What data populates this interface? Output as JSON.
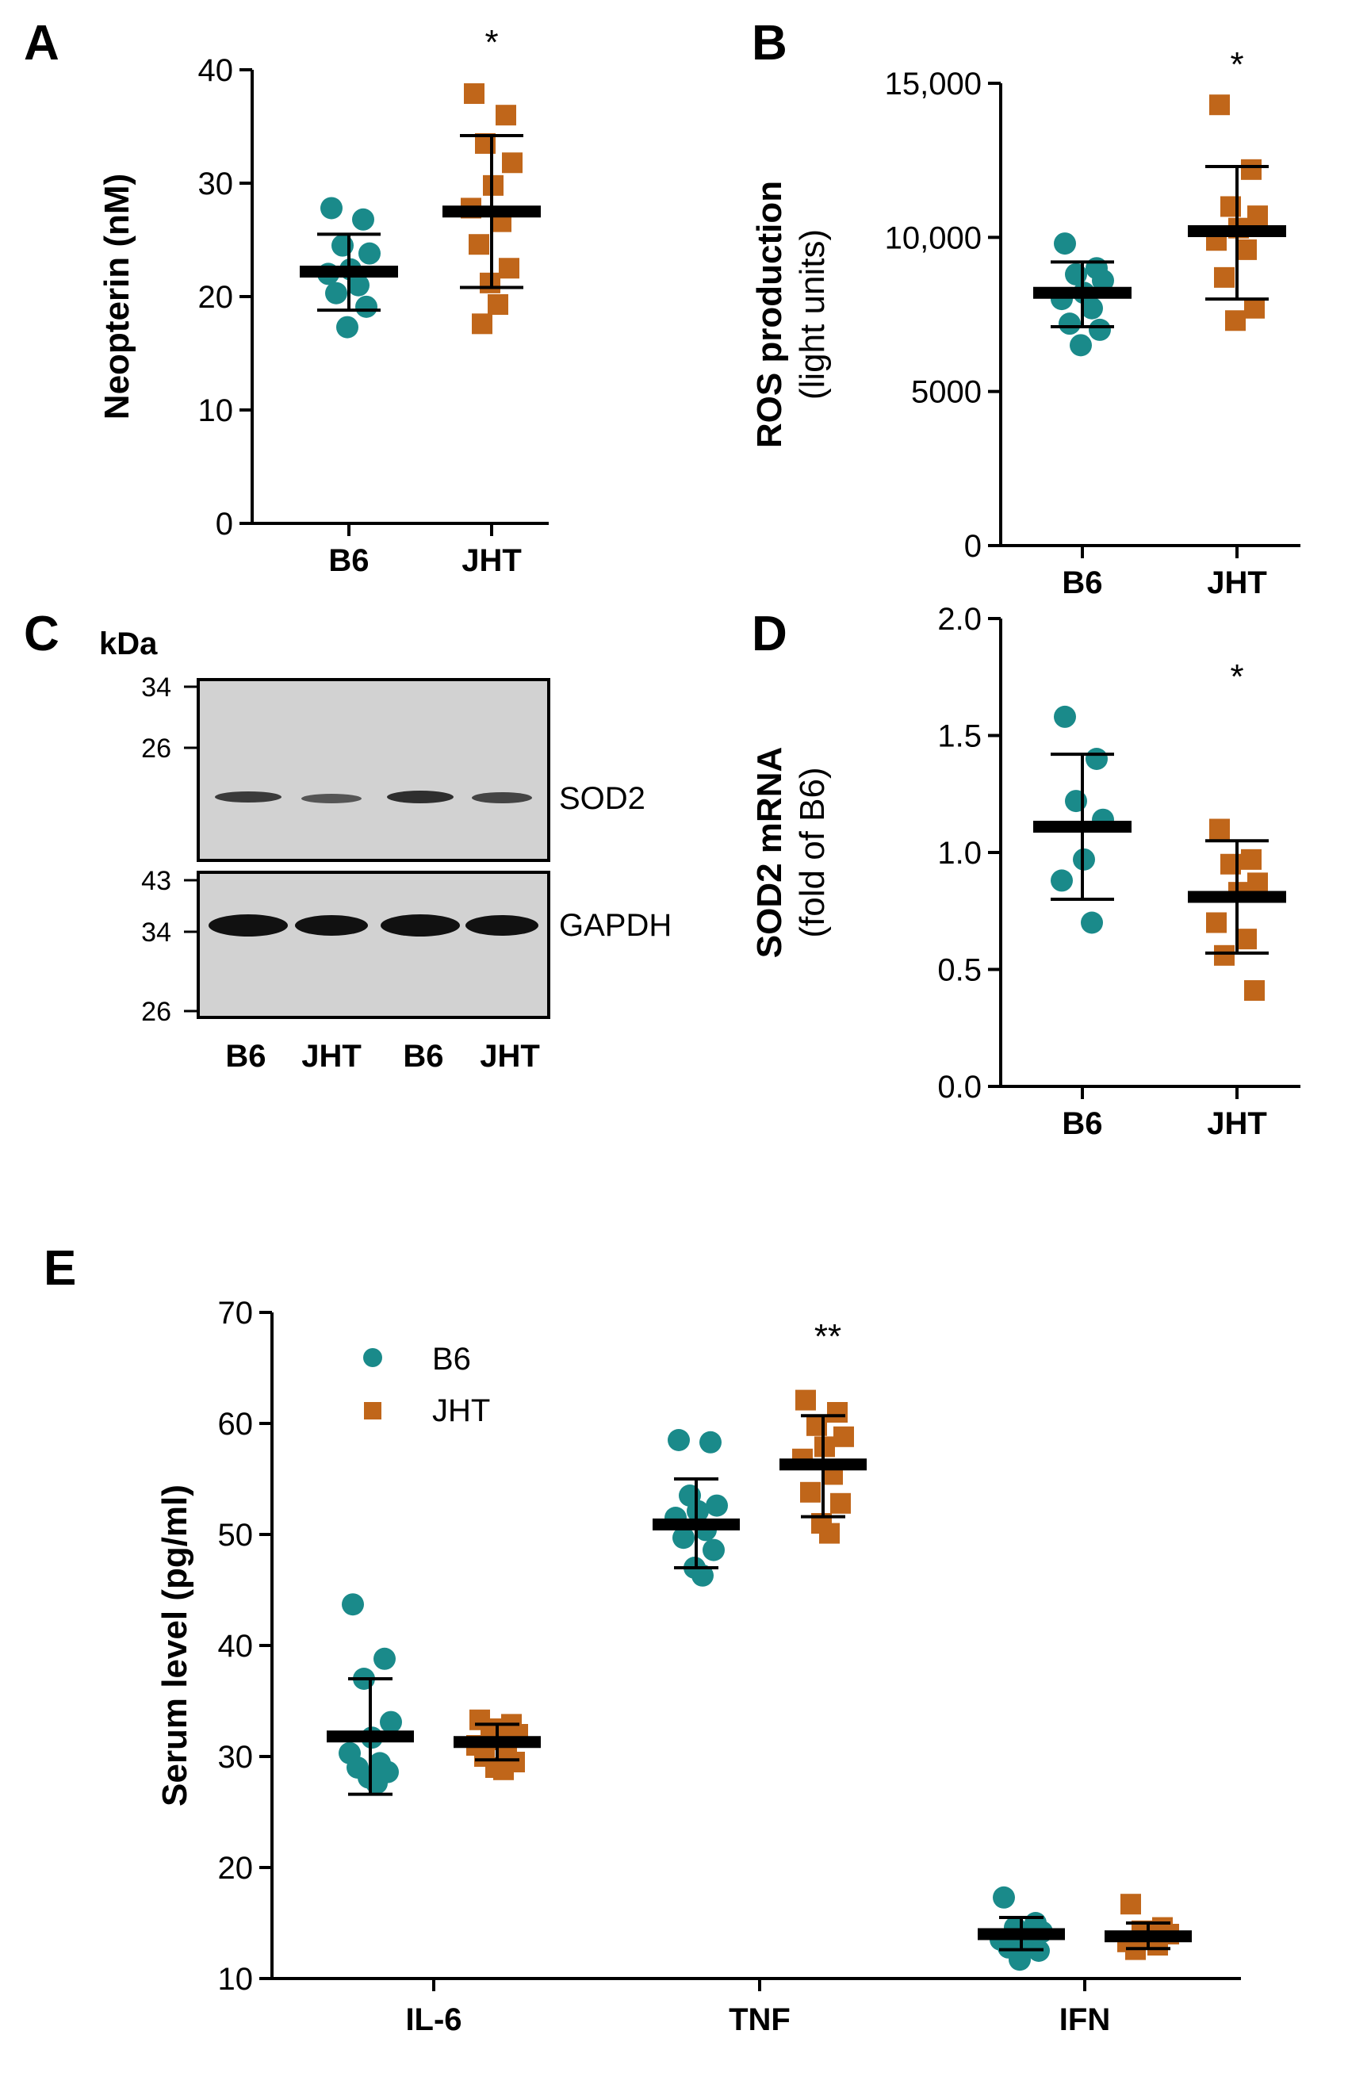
{
  "colors": {
    "b6": "#1a8a8a",
    "jht": "#c0661a",
    "ink": "#000000"
  },
  "chart_data": [
    {
      "panel": "A",
      "type": "scatter",
      "ylabel": "Neopterin (nM)",
      "ylim": [
        0,
        40
      ],
      "yticks": [
        "0",
        "10",
        "20",
        "30",
        "40"
      ],
      "categories": [
        "B6",
        "JHT"
      ],
      "series": [
        {
          "name": "B6",
          "marker": "circle",
          "mean": 22.2,
          "sd_low": 18.8,
          "sd_high": 25.5,
          "values": [
            27.8,
            26.8,
            24.5,
            23.8,
            22.4,
            22.0,
            21.0,
            20.3,
            19.1,
            17.3
          ]
        },
        {
          "name": "JHT",
          "marker": "square",
          "mean": 27.5,
          "sd_low": 20.8,
          "sd_high": 34.2,
          "values": [
            37.9,
            36.0,
            33.5,
            31.8,
            29.8,
            27.8,
            26.6,
            24.6,
            22.5,
            21.2,
            19.3,
            17.6
          ]
        }
      ],
      "significance": "*"
    },
    {
      "panel": "B",
      "type": "scatter",
      "ylabel": "ROS production",
      "ylabel_sub": "(light units)",
      "ylim": [
        0,
        15000
      ],
      "yticks": [
        "0",
        "5000",
        "10,000",
        "15,000"
      ],
      "categories": [
        "B6",
        "JHT"
      ],
      "series": [
        {
          "name": "B6",
          "marker": "circle",
          "mean": 8200,
          "sd_low": 7100,
          "sd_high": 9200,
          "values": [
            9800,
            9000,
            8800,
            8600,
            8200,
            8000,
            7700,
            7200,
            7000,
            6500
          ]
        },
        {
          "name": "JHT",
          "marker": "square",
          "mean": 10200,
          "sd_low": 8000,
          "sd_high": 12300,
          "values": [
            14300,
            12200,
            11000,
            10700,
            10300,
            9900,
            9600,
            8700,
            7700,
            7300
          ]
        }
      ],
      "significance": "*"
    },
    {
      "panel": "D",
      "type": "scatter",
      "ylabel": "SOD2 mRNA",
      "ylabel_sub": "(fold of B6)",
      "ylim": [
        0,
        2
      ],
      "yticks": [
        "0.0",
        "0.5",
        "1.0",
        "1.5",
        "2.0"
      ],
      "categories": [
        "B6",
        "JHT"
      ],
      "series": [
        {
          "name": "B6",
          "marker": "circle",
          "mean": 1.11,
          "sd_low": 0.8,
          "sd_high": 1.42,
          "values": [
            1.58,
            1.4,
            1.22,
            1.14,
            0.97,
            0.88,
            0.7
          ]
        },
        {
          "name": "JHT",
          "marker": "square",
          "mean": 0.81,
          "sd_low": 0.57,
          "sd_high": 1.05,
          "values": [
            1.1,
            0.97,
            0.95,
            0.87,
            0.83,
            0.7,
            0.63,
            0.56,
            0.41
          ]
        }
      ],
      "significance": "*"
    },
    {
      "panel": "E",
      "type": "scatter",
      "ylabel": "Serum level (pg/ml)",
      "ylim": [
        10,
        70
      ],
      "yticks": [
        "10",
        "20",
        "30",
        "40",
        "50",
        "60",
        "70"
      ],
      "categories": [
        "IL-6",
        "TNF",
        "IFN"
      ],
      "legend": [
        "B6",
        "JHT"
      ],
      "legend_position": "top-left",
      "groups": [
        {
          "category": "IL-6",
          "b6": {
            "mean": 31.8,
            "sd_low": 26.6,
            "sd_high": 37.0,
            "values": [
              43.7,
              38.8,
              37.0,
              33.1,
              31.7,
              30.3,
              29.4,
              29.0,
              28.6,
              28.1,
              27.6
            ]
          },
          "jht": {
            "mean": 31.3,
            "sd_low": 29.7,
            "sd_high": 32.9,
            "values": [
              33.3,
              32.9,
              32.5,
              32.0,
              31.5,
              31.0,
              30.6,
              30.0,
              29.5,
              29.0,
              28.8
            ]
          }
        },
        {
          "category": "TNF",
          "b6": {
            "mean": 50.9,
            "sd_low": 47.0,
            "sd_high": 55.0,
            "values": [
              58.5,
              58.3,
              53.5,
              52.6,
              52.1,
              51.5,
              50.4,
              49.7,
              48.6,
              47.0,
              46.3
            ]
          },
          "jht": {
            "mean": 56.3,
            "sd_low": 51.6,
            "sd_high": 60.7,
            "values": [
              62.1,
              61.0,
              59.8,
              58.8,
              57.9,
              56.8,
              55.4,
              53.8,
              52.8,
              51.0,
              50.1
            ]
          },
          "significance": "**"
        },
        {
          "category": "IFN",
          "b6": {
            "mean": 14.0,
            "sd_low": 12.6,
            "sd_high": 15.5,
            "values": [
              17.3,
              15.0,
              14.6,
              14.2,
              13.8,
              13.5,
              13.2,
              12.8,
              12.5,
              11.7
            ]
          },
          "jht": {
            "mean": 13.8,
            "sd_low": 12.7,
            "sd_high": 15.0,
            "values": [
              16.7,
              14.6,
              14.3,
              14.0,
              13.6,
              13.3,
              13.0,
              12.6
            ]
          }
        }
      ]
    }
  ],
  "panel_labels": [
    "A",
    "B",
    "C",
    "D",
    "E"
  ],
  "western_blot": {
    "panel": "C",
    "unit_label": "kDa",
    "top_blot": {
      "protein": "SOD2",
      "markers": [
        "34",
        "26"
      ]
    },
    "bottom_blot": {
      "protein": "GAPDH",
      "markers": [
        "43",
        "34",
        "26"
      ]
    },
    "lanes": [
      "B6",
      "JHT",
      "B6",
      "JHT"
    ]
  }
}
